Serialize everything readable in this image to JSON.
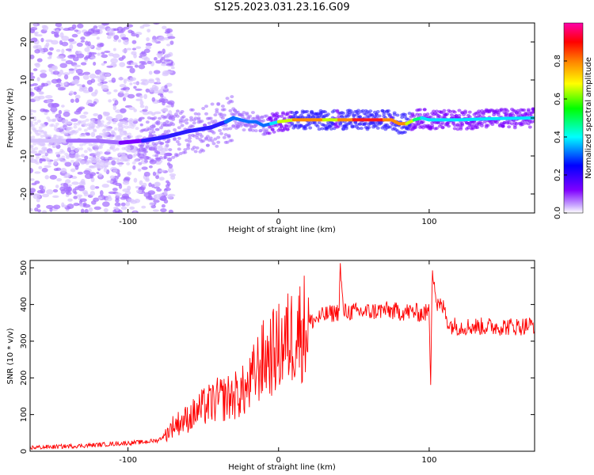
{
  "title": "S125.2023.031.23.16.G09",
  "chart_data": [
    {
      "type": "heatmap",
      "xlabel": "Height of straight line (km)",
      "ylabel": "Frequency (Hz)",
      "xlim": [
        -165,
        170
      ],
      "ylim": [
        -25,
        25
      ],
      "x_ticks": [
        -100,
        0,
        100
      ],
      "y_ticks": [
        -20,
        -10,
        0,
        10,
        20
      ],
      "colorbar": {
        "label": "Normalized spectral amplitude",
        "range": [
          0.0,
          1.0
        ],
        "ticks": [
          0.0,
          0.2,
          0.4,
          0.6,
          0.8
        ],
        "colors": [
          "#ffffff",
          "#c9a7ff",
          "#8000ff",
          "#0000ff",
          "#00ffff",
          "#00ff00",
          "#ffff00",
          "#ff8000",
          "#ff0000",
          "#ff00aa"
        ]
      },
      "ridge": {
        "x": [
          -165,
          -140,
          -120,
          -105,
          -90,
          -75,
          -60,
          -45,
          -35,
          -30,
          -20,
          -15,
          -10,
          -5,
          0,
          10,
          20,
          30,
          40,
          50,
          60,
          70,
          75,
          80,
          85,
          90,
          95,
          100,
          110,
          120,
          140,
          170
        ],
        "frequency": [
          -6,
          -6,
          -6,
          -6.5,
          -6,
          -5,
          -3.5,
          -2.5,
          -1,
          0,
          -1,
          -1,
          -2,
          -1.5,
          -1,
          -0.5,
          -0.5,
          -0.5,
          -0.5,
          -0.5,
          -0.5,
          -0.5,
          -0.5,
          -1.5,
          -1.5,
          -0.5,
          0,
          -0.5,
          -0.5,
          -0.5,
          -0.2,
          0
        ],
        "amplitude": [
          0.05,
          0.08,
          0.1,
          0.15,
          0.25,
          0.3,
          0.35,
          0.3,
          0.35,
          0.35,
          0.4,
          0.35,
          0.4,
          0.45,
          0.55,
          0.75,
          0.8,
          0.75,
          0.7,
          0.85,
          0.9,
          0.85,
          0.7,
          0.8,
          0.8,
          0.6,
          0.5,
          0.55,
          0.5,
          0.45,
          0.45,
          0.5
        ]
      }
    },
    {
      "type": "line",
      "xlabel": "Height of straight line (km)",
      "ylabel": "SNR (10 * v/v)",
      "xlim": [
        -165,
        170
      ],
      "ylim": [
        0,
        520
      ],
      "x_ticks": [
        -100,
        0,
        100
      ],
      "y_ticks": [
        0,
        100,
        200,
        300,
        400,
        500
      ],
      "color": "#ff0000",
      "series": [
        {
          "x": [
            -165,
            -150,
            -130,
            -110,
            -90,
            -80,
            -75,
            -70,
            -60,
            -50,
            -40,
            -30,
            -20,
            -15,
            -10,
            0,
            10,
            20,
            25,
            30,
            35,
            40,
            41,
            43,
            50,
            60,
            70,
            80,
            90,
            95,
            100,
            101,
            102,
            105,
            110,
            113,
            120,
            130,
            140,
            150,
            160,
            170
          ],
          "values": [
            10,
            12,
            15,
            20,
            25,
            30,
            45,
            70,
            90,
            120,
            140,
            150,
            170,
            220,
            250,
            280,
            320,
            350,
            360,
            370,
            375,
            380,
            500,
            380,
            380,
            380,
            385,
            380,
            380,
            375,
            380,
            190,
            510,
            400,
            390,
            345,
            340,
            340,
            340,
            340,
            340,
            345
          ]
        }
      ]
    }
  ]
}
